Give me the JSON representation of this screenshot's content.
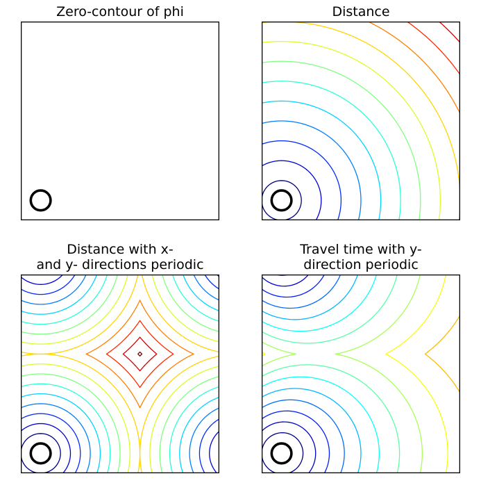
{
  "chart_data": [
    {
      "type": "contour",
      "title": "Zero-contour of phi",
      "field": "phi",
      "levels": [
        0
      ],
      "circle_center": [
        0.1,
        0.1
      ],
      "circle_radius": 0.05,
      "zero_contour_color": "#000000"
    },
    {
      "type": "contour",
      "title": "Distance",
      "field": "distance",
      "levels": [
        0.05,
        0.15,
        0.25,
        0.35,
        0.45,
        0.55,
        0.65,
        0.75,
        0.85,
        0.95,
        1.05,
        1.15,
        1.25
      ],
      "circle_center": [
        0.1,
        0.1
      ],
      "circle_radius": 0.05,
      "colormap": "jet"
    },
    {
      "type": "contour",
      "title": "Distance with x-\nand y- directions periodic",
      "field": "periodic_xy_distance",
      "levels": [
        0.05,
        0.1,
        0.15,
        0.2,
        0.25,
        0.3,
        0.35,
        0.4,
        0.45,
        0.5,
        0.55,
        0.6,
        0.65
      ],
      "circle_center": [
        0.1,
        0.1
      ],
      "circle_radius": 0.05,
      "colormap": "jet"
    },
    {
      "type": "contour",
      "title": "Travel time with y-\ndirection periodic",
      "field": "travel_time_y_periodic",
      "levels": [
        0.05,
        0.1,
        0.15,
        0.2,
        0.25,
        0.3,
        0.35,
        0.4,
        0.45,
        0.5,
        0.55,
        0.6,
        0.65,
        0.7
      ],
      "circle_center": [
        0.1,
        0.1
      ],
      "circle_radius": 0.05,
      "colormap": "jet"
    }
  ]
}
